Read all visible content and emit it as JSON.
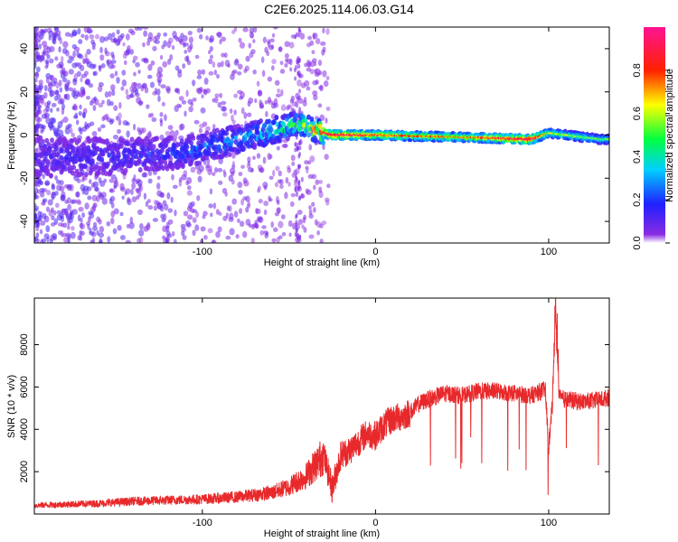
{
  "title": "C2E6.2025.114.06.03.G14",
  "colors": {
    "frame": "#000000",
    "snr_line": "#e8292b",
    "background": "#ffffff"
  },
  "chart_data": [
    {
      "type": "heatmap",
      "xlabel": "Height of straight line (km)",
      "ylabel": "Frequency (Hz)",
      "xlim": [
        -197,
        135
      ],
      "ylim": [
        -50,
        50
      ],
      "x_ticks": [
        -100,
        0,
        100
      ],
      "x_tick_labels": [
        "-100",
        "0",
        "100"
      ],
      "y_ticks": [
        -40,
        -20,
        0,
        20,
        40
      ],
      "y_tick_labels": [
        "-40",
        "-20",
        "0",
        "20",
        "40"
      ],
      "colorbar": {
        "label": "Normalized spectral amplitude",
        "range": [
          0,
          1
        ],
        "ticks": [
          0.0,
          0.2,
          0.4,
          0.6,
          0.8
        ],
        "tick_labels": [
          "0.0",
          "0.2",
          "0.4",
          "0.6",
          "0.8"
        ],
        "colormap": "rainbow (purple → blue → cyan → green → yellow → red → magenta)"
      },
      "description_points": [
        {
          "x": -150,
          "y": -10,
          "amp": 0.15
        },
        {
          "x": -110,
          "y": -8,
          "amp": 0.2
        },
        {
          "x": -80,
          "y": -2,
          "amp": 0.3
        },
        {
          "x": -60,
          "y": 2,
          "amp": 0.4
        },
        {
          "x": -45,
          "y": 5,
          "amp": 0.5
        },
        {
          "x": -25,
          "y": 0,
          "amp": 0.9
        },
        {
          "x": 0,
          "y": 0,
          "amp": 0.7
        },
        {
          "x": 50,
          "y": -1,
          "amp": 0.6
        },
        {
          "x": 90,
          "y": -2,
          "amp": 0.9
        },
        {
          "x": 100,
          "y": 1,
          "amp": 0.5
        },
        {
          "x": 130,
          "y": -2,
          "amp": 0.4
        }
      ]
    },
    {
      "type": "line",
      "xlabel": "Height of straight line (km)",
      "ylabel": "SNR (10 * v/v)",
      "xlim": [
        -197,
        135
      ],
      "ylim": [
        0,
        10200
      ],
      "x_ticks": [
        -100,
        0,
        100
      ],
      "x_tick_labels": [
        "-100",
        "0",
        "100"
      ],
      "y_ticks": [
        2000,
        4000,
        6000,
        8000
      ],
      "y_tick_labels": [
        "2000",
        "4000",
        "6000",
        "8000"
      ],
      "series": [
        {
          "x": [
            -197,
            -180,
            -160,
            -140,
            -120,
            -100,
            -80,
            -60,
            -50,
            -40,
            -35,
            -30,
            -25,
            -20,
            -15,
            -10,
            -5,
            0,
            5,
            10,
            15,
            20,
            25,
            30,
            40,
            50,
            60,
            70,
            80,
            90,
            98,
            100,
            102,
            104,
            106,
            110,
            120,
            130,
            135
          ],
          "y": [
            400,
            450,
            500,
            600,
            650,
            700,
            800,
            1000,
            1300,
            1800,
            2300,
            2800,
            1200,
            2800,
            3000,
            3400,
            3800,
            3700,
            4200,
            4500,
            4600,
            4800,
            5200,
            5400,
            5700,
            5600,
            5800,
            5800,
            5700,
            5600,
            5900,
            3200,
            5000,
            9500,
            5500,
            5400,
            5300,
            5400,
            5500
          ]
        }
      ]
    }
  ]
}
